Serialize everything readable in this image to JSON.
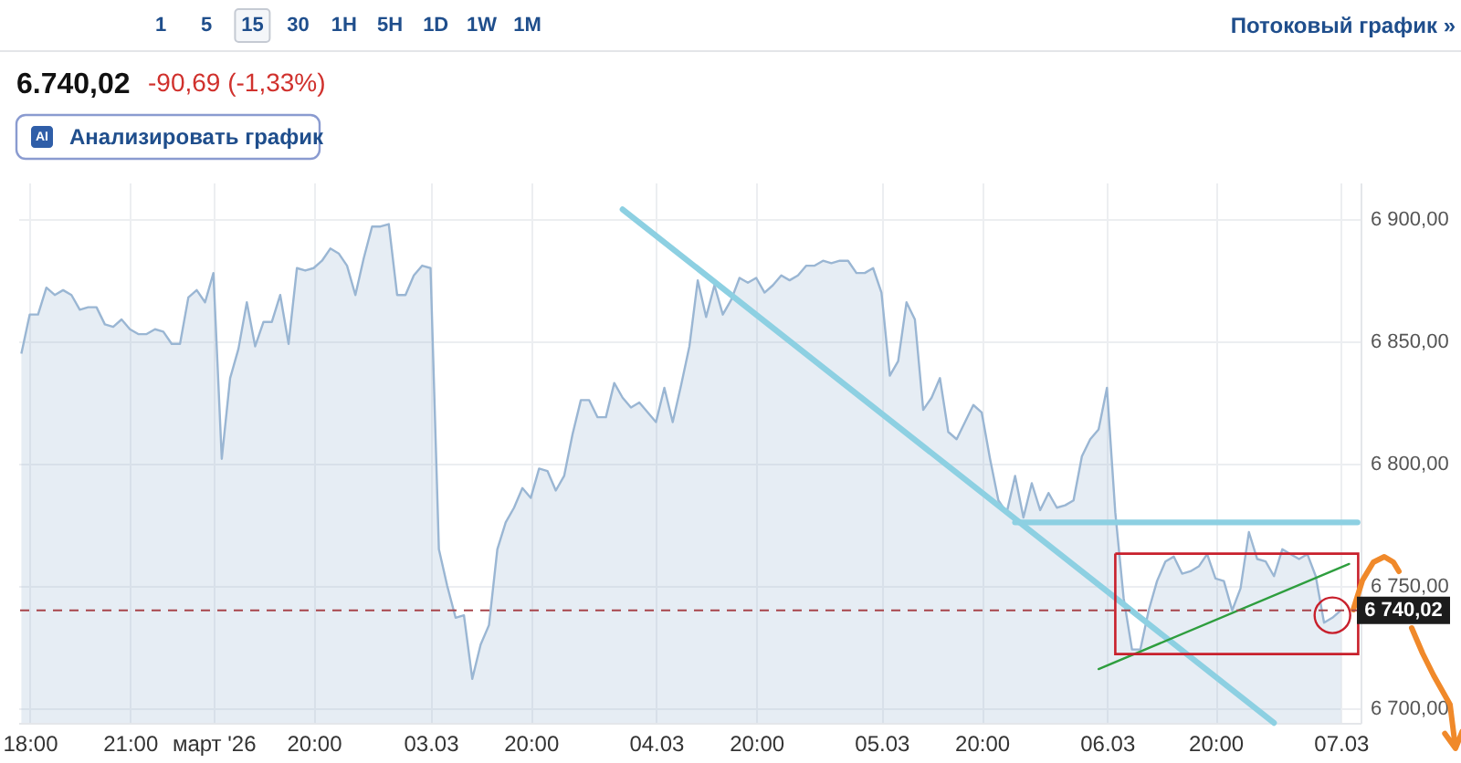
{
  "chart_data": {
    "type": "area",
    "title": "6.740,02",
    "subtitle": "-90,69 (-1,33%)",
    "annotations": [
      "1 5 15 30 1H 5H 1D 1W 1M",
      "Потоковый график »",
      "AI",
      "Анализировать график"
    ],
    "categories": [
      null,
      "18:00",
      null,
      null,
      null,
      null,
      null,
      null,
      null,
      null,
      null,
      null,
      null,
      "21:00",
      null,
      null,
      null,
      null,
      null,
      null,
      null,
      null,
      null,
      "март '26",
      null,
      null,
      null,
      null,
      null,
      null,
      null,
      null,
      null,
      null,
      null,
      "20:00",
      null,
      null,
      null,
      null,
      null,
      null,
      null,
      null,
      null,
      null,
      null,
      null,
      null,
      "03.03",
      null,
      null,
      null,
      null,
      null,
      null,
      null,
      null,
      null,
      null,
      null,
      "20:00",
      null,
      null,
      null,
      null,
      null,
      null,
      null,
      null,
      null,
      null,
      null,
      null,
      null,
      null,
      "04.03",
      null,
      null,
      null,
      null,
      null,
      null,
      null,
      null,
      null,
      null,
      null,
      "20:00",
      null,
      null,
      null,
      null,
      null,
      null,
      null,
      null,
      null,
      null,
      null,
      null,
      null,
      null,
      "05.03",
      null,
      null,
      null,
      null,
      null,
      null,
      null,
      null,
      null,
      null,
      null,
      "20:00",
      null,
      null,
      null,
      null,
      null,
      null,
      null,
      null,
      null,
      null,
      null,
      null,
      null,
      null,
      "06.03",
      null,
      null,
      null,
      null,
      null,
      null,
      null,
      null,
      null,
      null,
      null,
      null,
      "20:00",
      null,
      null,
      null,
      null,
      null,
      null,
      null,
      null,
      null,
      null,
      null,
      null,
      null,
      null,
      "07.03",
      null,
      null
    ],
    "ylim": [
      6694,
      6915
    ],
    "yticks": [
      {
        "value": 6700,
        "label": "6 700,00"
      },
      {
        "value": 6750,
        "label": "6 750,00"
      },
      {
        "value": 6800,
        "label": "6 800,00"
      },
      {
        "value": 6850,
        "label": "6 850,00"
      },
      {
        "value": 6900,
        "label": "6 900,00"
      }
    ],
    "grid": true,
    "series": [
      {
        "color": "#9ab6d3",
        "values": [
          6845,
          6861,
          6861,
          6872,
          6869,
          6871,
          6869,
          6863,
          6864,
          6864,
          6857,
          6856,
          6859,
          6855,
          6853,
          6853,
          6855,
          6854,
          6849,
          6849,
          6868,
          6871,
          6866,
          6878,
          6802,
          6835,
          6847,
          6866,
          6848,
          6858,
          6858,
          6869,
          6849,
          6880,
          6879,
          6880,
          6883,
          6888,
          6886,
          6881,
          6869,
          6884,
          6897,
          6897,
          6898,
          6869,
          6869,
          6877,
          6881,
          6880,
          6765,
          6750,
          6737,
          6738,
          6712,
          6726,
          6734,
          6765,
          6776,
          6782,
          6790,
          6786,
          6798,
          6797,
          6789,
          6795,
          6812,
          6826,
          6826,
          6819,
          6819,
          6833,
          6827,
          6823,
          6825,
          6821,
          6817,
          6831,
          6817,
          6832,
          6848,
          6875,
          6860,
          6873,
          6861,
          6867,
          6876,
          6874,
          6876,
          6870,
          6873,
          6877,
          6875,
          6877,
          6881,
          6881,
          6883,
          6882,
          6883,
          6883,
          6878,
          6878,
          6880,
          6870,
          6836,
          6842,
          6866,
          6859,
          6822,
          6827,
          6835,
          6813,
          6810,
          6817,
          6824,
          6821,
          6802,
          6785,
          6780,
          6795,
          6778,
          6792,
          6781,
          6788,
          6782,
          6783,
          6785,
          6803,
          6810,
          6814,
          6831,
          6780,
          6745,
          6724,
          6724,
          6740,
          6752,
          6760,
          6762,
          6755,
          6756,
          6758,
          6763,
          6753,
          6752,
          6740,
          6749,
          6772,
          6761,
          6760,
          6754,
          6765,
          6763,
          6761,
          6763,
          6754,
          6735,
          6737,
          6740,
          null,
          null
        ]
      },
      {
        "type": "line",
        "color": "#8dd0e2",
        "values": [
          null,
          null,
          null,
          null,
          null,
          null,
          null,
          null,
          null,
          null,
          null,
          null,
          null,
          null,
          null,
          null,
          null,
          null,
          null,
          null,
          null,
          null,
          null,
          null,
          null,
          null,
          null,
          null,
          null,
          null,
          null,
          null,
          null,
          null,
          null,
          null,
          null,
          null,
          null,
          null,
          null,
          null,
          null,
          null,
          null,
          null,
          null,
          null,
          null,
          null,
          null,
          null,
          null,
          null,
          null,
          null,
          null,
          null,
          null,
          null,
          null,
          null,
          null,
          null,
          null,
          null,
          null,
          null,
          null,
          null,
          null,
          null,
          6904,
          null,
          null,
          null,
          null,
          null,
          null,
          null,
          null,
          null,
          null,
          null,
          null,
          null,
          null,
          null,
          null,
          null,
          null,
          null,
          null,
          null,
          null,
          null,
          null,
          null,
          null,
          null,
          null,
          null,
          null,
          null,
          null,
          null,
          null,
          null,
          null,
          null,
          null,
          null,
          null,
          null,
          null,
          null,
          null,
          null,
          null,
          null,
          null,
          null,
          null,
          null,
          null,
          null,
          null,
          null,
          null,
          null,
          null,
          null,
          null,
          null,
          null,
          null,
          null,
          null,
          null,
          null,
          null,
          null,
          null,
          null,
          null,
          null,
          null,
          null,
          null,
          null,
          6694,
          null,
          null,
          null,
          null,
          null,
          null,
          null,
          null,
          null,
          null
        ]
      },
      {
        "type": "line",
        "color": "#8dd0e2",
        "values": [
          null,
          null,
          null,
          null,
          null,
          null,
          null,
          null,
          null,
          null,
          null,
          null,
          null,
          null,
          null,
          null,
          null,
          null,
          null,
          null,
          null,
          null,
          null,
          null,
          null,
          null,
          null,
          null,
          null,
          null,
          null,
          null,
          null,
          null,
          null,
          null,
          null,
          null,
          null,
          null,
          null,
          null,
          null,
          null,
          null,
          null,
          null,
          null,
          null,
          null,
          null,
          null,
          null,
          null,
          null,
          null,
          null,
          null,
          null,
          null,
          null,
          null,
          null,
          null,
          null,
          null,
          null,
          null,
          null,
          null,
          null,
          null,
          null,
          null,
          null,
          null,
          null,
          null,
          null,
          null,
          null,
          null,
          null,
          null,
          null,
          null,
          null,
          null,
          null,
          null,
          null,
          null,
          null,
          null,
          null,
          null,
          null,
          null,
          null,
          null,
          null,
          null,
          null,
          null,
          null,
          null,
          null,
          null,
          null,
          null,
          null,
          null,
          null,
          null,
          null,
          null,
          null,
          null,
          null,
          6776,
          null,
          null,
          null,
          null,
          null,
          null,
          null,
          null,
          null,
          null,
          null,
          null,
          null,
          null,
          null,
          null,
          null,
          null,
          null,
          null,
          null,
          null,
          null,
          null,
          null,
          null,
          null,
          null,
          null,
          null,
          null,
          null,
          null,
          null,
          null,
          null,
          null,
          null,
          null,
          null,
          6776
        ]
      },
      {
        "type": "line",
        "color": "#2e9e3e",
        "values": [
          null,
          null,
          null,
          null,
          null,
          null,
          null,
          null,
          null,
          null,
          null,
          null,
          null,
          null,
          null,
          null,
          null,
          null,
          null,
          null,
          null,
          null,
          null,
          null,
          null,
          null,
          null,
          null,
          null,
          null,
          null,
          null,
          null,
          null,
          null,
          null,
          null,
          null,
          null,
          null,
          null,
          null,
          null,
          null,
          null,
          null,
          null,
          null,
          null,
          null,
          null,
          null,
          null,
          null,
          null,
          null,
          null,
          null,
          null,
          null,
          null,
          null,
          null,
          null,
          null,
          null,
          null,
          null,
          null,
          null,
          null,
          null,
          null,
          null,
          null,
          null,
          null,
          null,
          null,
          null,
          null,
          null,
          null,
          null,
          null,
          null,
          null,
          null,
          null,
          null,
          null,
          null,
          null,
          null,
          null,
          null,
          null,
          null,
          null,
          null,
          null,
          null,
          null,
          null,
          null,
          null,
          null,
          null,
          null,
          null,
          null,
          null,
          null,
          null,
          null,
          null,
          null,
          null,
          null,
          null,
          null,
          null,
          null,
          null,
          null,
          null,
          null,
          null,
          null,
          6716,
          null,
          null,
          null,
          null,
          null,
          null,
          null,
          null,
          null,
          null,
          null,
          null,
          null,
          null,
          null,
          null,
          null,
          null,
          null,
          null,
          null,
          null,
          null,
          null,
          null,
          null,
          null,
          null,
          null,
          6759,
          null
        ]
      },
      {
        "type": "scatter",
        "color": "#c8202c",
        "marker": "circle",
        "values": [
          null,
          null,
          null,
          null,
          null,
          null,
          null,
          null,
          null,
          null,
          null,
          null,
          null,
          null,
          null,
          null,
          null,
          null,
          null,
          null,
          null,
          null,
          null,
          null,
          null,
          null,
          null,
          null,
          null,
          null,
          null,
          null,
          null,
          null,
          null,
          null,
          null,
          null,
          null,
          null,
          null,
          null,
          null,
          null,
          null,
          null,
          null,
          null,
          null,
          null,
          null,
          null,
          null,
          null,
          null,
          null,
          null,
          null,
          null,
          null,
          null,
          null,
          null,
          null,
          null,
          null,
          null,
          null,
          null,
          null,
          null,
          null,
          null,
          null,
          null,
          null,
          null,
          null,
          null,
          null,
          null,
          null,
          null,
          null,
          null,
          null,
          null,
          null,
          null,
          null,
          null,
          null,
          null,
          null,
          null,
          null,
          null,
          null,
          null,
          null,
          null,
          null,
          null,
          null,
          null,
          null,
          null,
          null,
          null,
          null,
          null,
          null,
          null,
          null,
          null,
          null,
          null,
          null,
          null,
          null,
          null,
          null,
          null,
          null,
          null,
          null,
          null,
          null,
          null,
          null,
          null,
          null,
          null,
          null,
          null,
          null,
          null,
          null,
          null,
          null,
          null,
          null,
          null,
          null,
          null,
          null,
          null,
          null,
          null,
          null,
          null,
          null,
          null,
          null,
          null,
          null,
          null,
          6738,
          null,
          null,
          null
        ]
      }
    ],
    "ref_lines": [
      {
        "axis": "y",
        "value": 6740.02,
        "label": "6 740,02",
        "color": "#a8444a",
        "line_style": "dashed"
      }
    ]
  }
}
